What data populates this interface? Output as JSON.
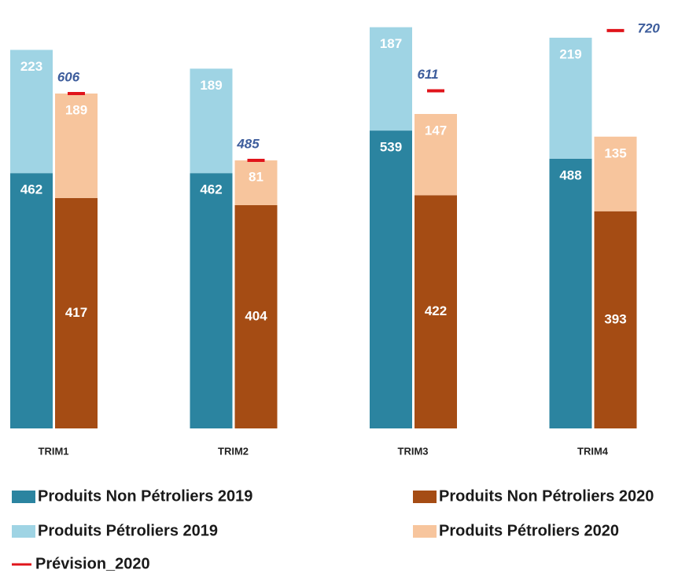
{
  "chart_data": {
    "type": "bar",
    "categories": [
      "TRIM1",
      "TRIM2",
      "TRIM3",
      "TRIM4"
    ],
    "series": [
      {
        "name": "Produits Non Pétroliers 2019",
        "color": "#2b84a0",
        "values": [
          462,
          462,
          539,
          488
        ]
      },
      {
        "name": "Produits Pétroliers 2019",
        "color": "#9fd4e4",
        "values": [
          223,
          189,
          187,
          219
        ]
      },
      {
        "name": "Produits Non Pétroliers 2020",
        "color": "#a54c14",
        "values": [
          417,
          404,
          422,
          393
        ]
      },
      {
        "name": "Produits Pétroliers 2020",
        "color": "#f7c59d",
        "values": [
          189,
          81,
          147,
          135
        ]
      }
    ],
    "forecast": {
      "name": "Prévision_2020",
      "color": "#e0141b",
      "values": [
        606,
        485,
        611,
        720
      ]
    },
    "ylim": [
      0,
      760
    ]
  }
}
